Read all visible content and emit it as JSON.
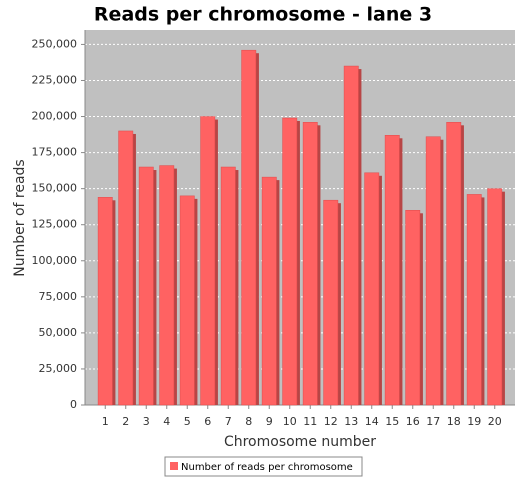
{
  "chart_data": {
    "type": "bar",
    "title": "Reads per chromosome - lane 3",
    "x_label": "Chromosome number",
    "y_label": "Number of reads",
    "categories": [
      "1",
      "2",
      "3",
      "4",
      "5",
      "6",
      "7",
      "8",
      "9",
      "10",
      "11",
      "12",
      "13",
      "14",
      "15",
      "16",
      "17",
      "18",
      "19",
      "20"
    ],
    "series": [
      {
        "name": "Number of reads per chromosome",
        "color": "#ff6262",
        "values": [
          144000,
          190000,
          165000,
          166000,
          145000,
          200000,
          165000,
          246000,
          158000,
          199000,
          196000,
          142000,
          235000,
          161000,
          187000,
          135000,
          186000,
          196000,
          146000,
          150000
        ]
      }
    ],
    "ylim": [
      0,
      260000
    ],
    "yticks": [
      0,
      {
        "value": 25000,
        "label": "25,000"
      },
      {
        "value": 50000,
        "label": "50,000"
      },
      {
        "value": 75000,
        "label": "75,000"
      },
      {
        "value": 100000,
        "label": "100,000"
      },
      {
        "value": 125000,
        "label": "125,000"
      },
      {
        "value": 150000,
        "label": "150,000"
      },
      {
        "value": 175000,
        "label": "175,000"
      },
      {
        "value": 200000,
        "label": "200,000"
      },
      {
        "value": 225000,
        "label": "225,000"
      },
      {
        "value": 250000,
        "label": "250,000"
      }
    ],
    "grid": true,
    "legend": "bottom"
  }
}
